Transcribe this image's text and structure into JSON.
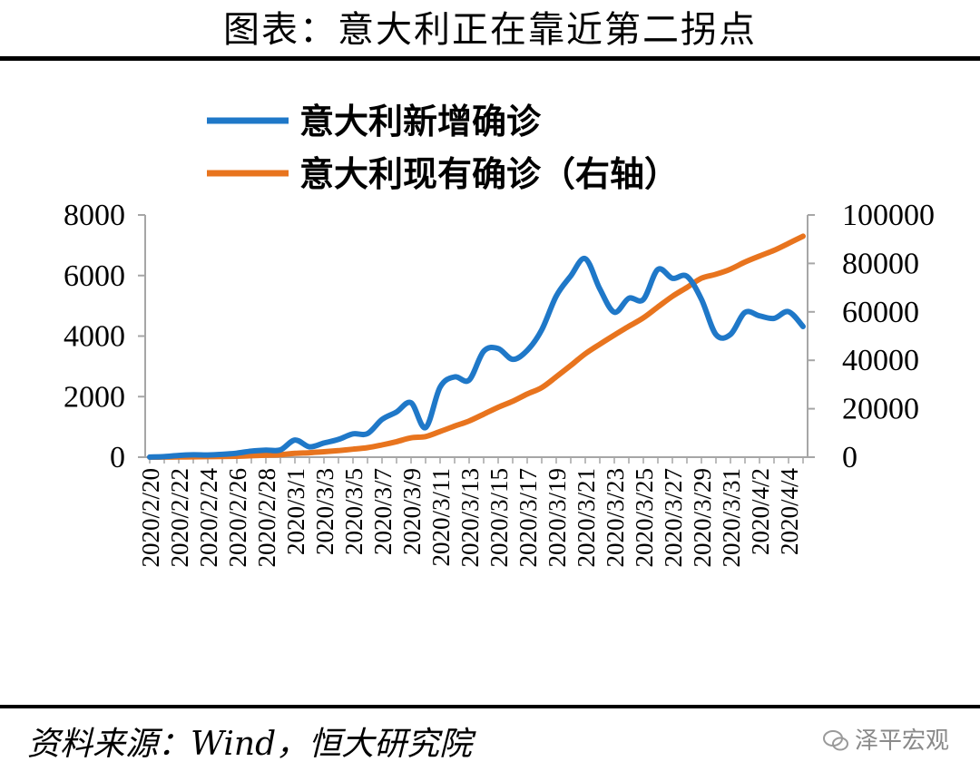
{
  "title": "图表：意大利正在靠近第二拐点",
  "source": "资料来源：Wind，恒大研究院",
  "watermark": "泽平宏观",
  "colors": {
    "series1": "#1f78c8",
    "series2": "#e8741e",
    "axis": "#a6a6a6"
  },
  "chart_data": {
    "type": "line",
    "legend_position": "top-left",
    "grid": false,
    "x": [
      "2020/2/20",
      "2020/2/21",
      "2020/2/22",
      "2020/2/23",
      "2020/2/24",
      "2020/2/25",
      "2020/2/26",
      "2020/2/27",
      "2020/2/28",
      "2020/2/29",
      "2020/3/1",
      "2020/3/2",
      "2020/3/3",
      "2020/3/4",
      "2020/3/5",
      "2020/3/6",
      "2020/3/7",
      "2020/3/8",
      "2020/3/9",
      "2020/3/10",
      "2020/3/11",
      "2020/3/12",
      "2020/3/13",
      "2020/3/14",
      "2020/3/15",
      "2020/3/16",
      "2020/3/17",
      "2020/3/18",
      "2020/3/19",
      "2020/3/20",
      "2020/3/21",
      "2020/3/22",
      "2020/3/23",
      "2020/3/24",
      "2020/3/25",
      "2020/3/26",
      "2020/3/27",
      "2020/3/28",
      "2020/3/29",
      "2020/3/30",
      "2020/3/31",
      "2020/4/1",
      "2020/4/2",
      "2020/4/3",
      "2020/4/4",
      "2020/4/5"
    ],
    "x_tick_labels": [
      "2020/2/20",
      "2020/2/22",
      "2020/2/24",
      "2020/2/26",
      "2020/2/28",
      "2020/3/1",
      "2020/3/3",
      "2020/3/5",
      "2020/3/7",
      "2020/3/9",
      "2020/3/11",
      "2020/3/13",
      "2020/3/15",
      "2020/3/17",
      "2020/3/19",
      "2020/3/21",
      "2020/3/23",
      "2020/3/25",
      "2020/3/27",
      "2020/3/29",
      "2020/3/31",
      "2020/4/2",
      "2020/4/4"
    ],
    "y_left": {
      "min": 0,
      "max": 8000,
      "ticks": [
        0,
        2000,
        4000,
        6000,
        8000
      ]
    },
    "y_right": {
      "min": 0,
      "max": 100000,
      "ticks": [
        0,
        20000,
        40000,
        60000,
        80000,
        100000
      ]
    },
    "series": [
      {
        "name": "意大利新增确诊",
        "axis": "left",
        "values": [
          3,
          17,
          58,
          78,
          72,
          93,
          131,
          202,
          233,
          240,
          566,
          342,
          466,
          587,
          769,
          778,
          1247,
          1492,
          1797,
          977,
          2313,
          2651,
          2547,
          3497,
          3590,
          3233,
          3526,
          4207,
          5322,
          5986,
          6557,
          5560,
          4789,
          5249,
          5210,
          6203,
          5909,
          5974,
          5217,
          4050,
          4053,
          4782,
          4668,
          4585,
          4805,
          4316
        ]
      },
      {
        "name": "意大利现有确诊（右轴）",
        "axis": "right",
        "values": [
          3,
          20,
          79,
          150,
          221,
          311,
          385,
          588,
          821,
          1049,
          1577,
          1835,
          2263,
          2706,
          3296,
          3916,
          5061,
          6387,
          7985,
          8514,
          10590,
          12839,
          14955,
          17750,
          20603,
          23073,
          26062,
          28710,
          33190,
          37860,
          42681,
          46638,
          50418,
          54030,
          57521,
          62013,
          66414,
          70065,
          73880,
          75528,
          77635,
          80572,
          83049,
          85388,
          88274,
          91246
        ]
      }
    ]
  }
}
